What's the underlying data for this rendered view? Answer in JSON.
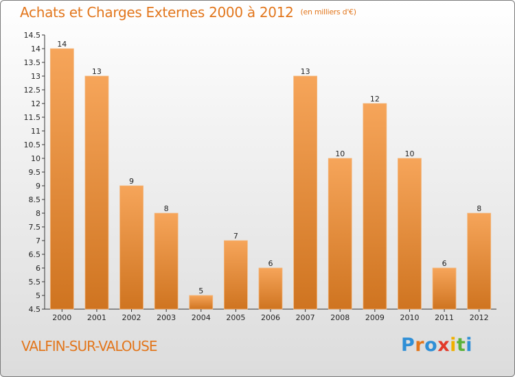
{
  "title": "Achats et Charges Externes 2000 à 2012",
  "unit": "(en milliers d'€)",
  "town": "VALFIN-SUR-VALOUSE",
  "brand": {
    "letters": [
      "P",
      "r",
      "o",
      "x",
      "i",
      "t",
      "i"
    ],
    "colors": [
      "#2f8fd6",
      "#e2761c",
      "#2f8fd6",
      "#e23a2a",
      "#f0b000",
      "#5bb23a",
      "#2f8fd6"
    ]
  },
  "colors": {
    "bar_top": "#f6a55a",
    "bar_bottom": "#cf7420",
    "accent": "#e2761c"
  },
  "chart_data": {
    "type": "bar",
    "categories": [
      "2000",
      "2001",
      "2002",
      "2003",
      "2004",
      "2005",
      "2006",
      "2007",
      "2008",
      "2009",
      "2010",
      "2011",
      "2012"
    ],
    "values": [
      14,
      13,
      9,
      8,
      5,
      7,
      6,
      13,
      10,
      12,
      10,
      6,
      8
    ],
    "ylim": [
      4.5,
      14.5
    ],
    "yticks": [
      "4.5",
      "5",
      "5.5",
      "6",
      "6.5",
      "7",
      "7.5",
      "8",
      "8.5",
      "9",
      "9.5",
      "10",
      "10.5",
      "11",
      "11.5",
      "12",
      "12.5",
      "13",
      "13.5",
      "14",
      "14.5"
    ],
    "grid": false,
    "legend": "none"
  }
}
